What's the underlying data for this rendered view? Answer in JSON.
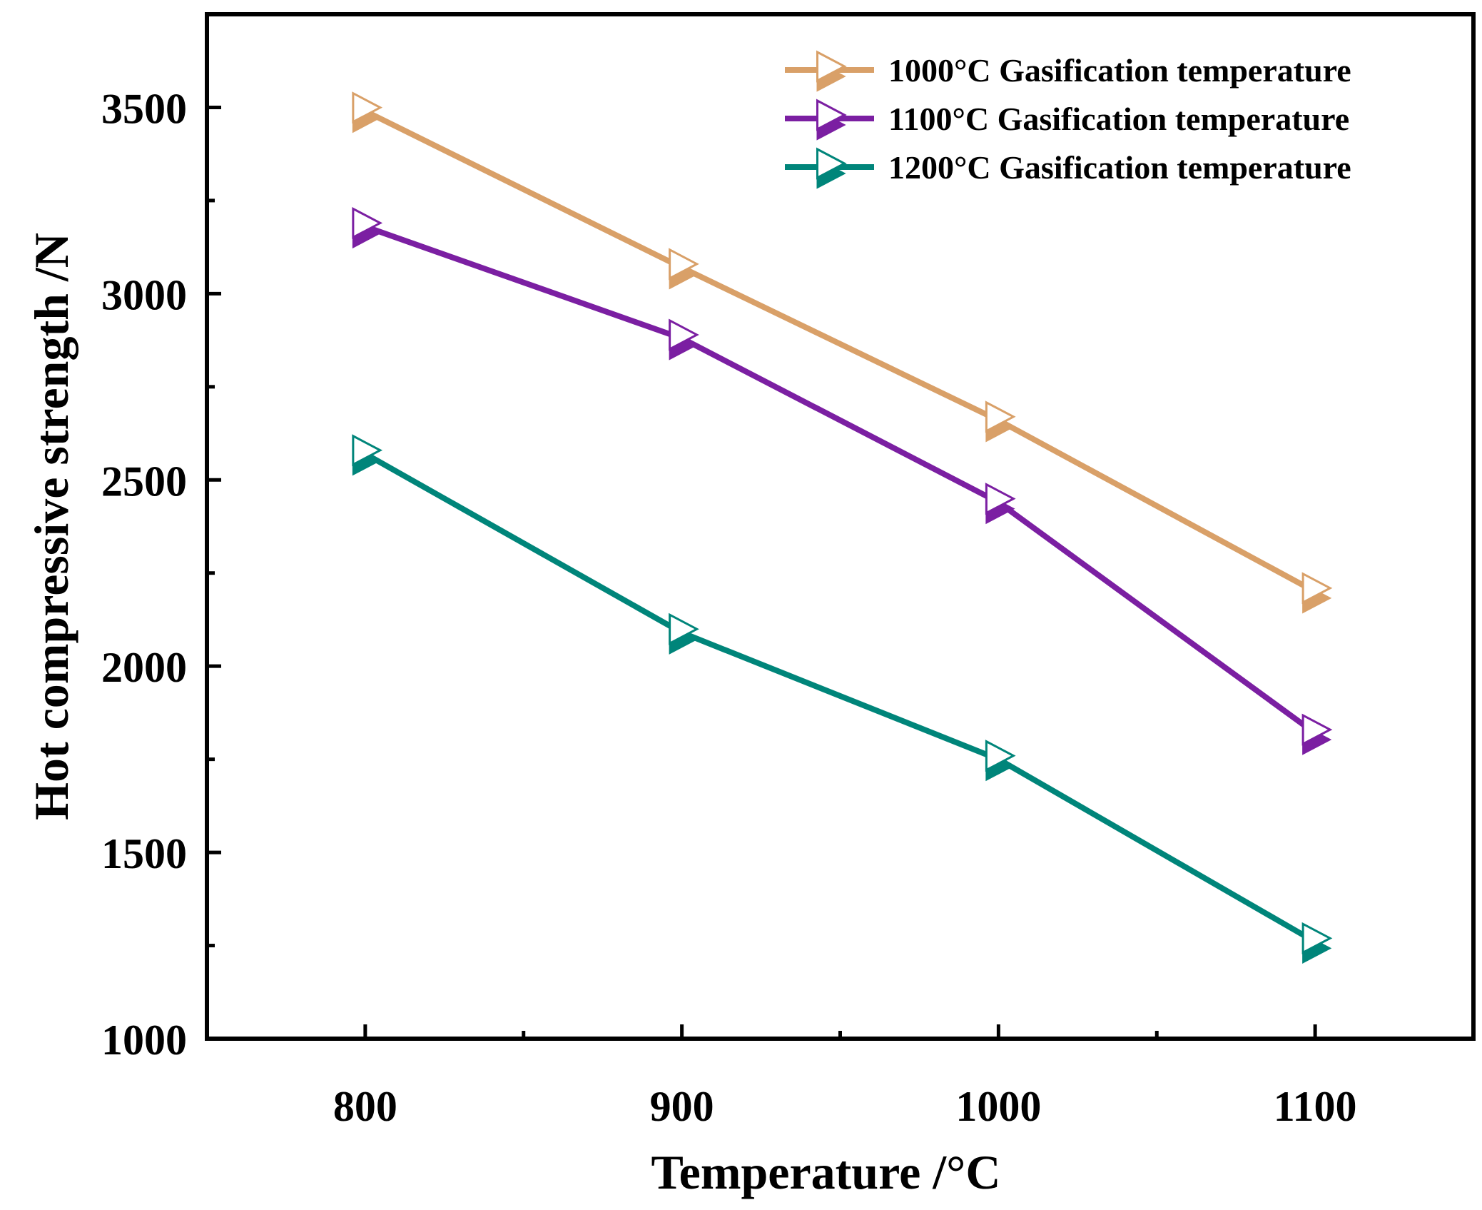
{
  "chart_data": {
    "type": "line",
    "title": "",
    "xlabel": "Temperature /°C",
    "ylabel": "Hot compressive strength /N",
    "x": [
      800,
      900,
      1000,
      1100
    ],
    "xlim": [
      750,
      1150
    ],
    "ylim": [
      1000,
      3750
    ],
    "xticks": [
      800,
      900,
      1000,
      1100
    ],
    "yticks": [
      1000,
      1500,
      2000,
      2500,
      3000,
      3500
    ],
    "xtick_labels": [
      "800",
      "900",
      "1000",
      "1100"
    ],
    "ytick_labels": [
      "1000",
      "1500",
      "2000",
      "2500",
      "3000",
      "3500"
    ],
    "grid": false,
    "legend_position": "top-right",
    "marker": "right-triangle",
    "series": [
      {
        "name": "1000°C Gasification temperature",
        "color": "#D9A068",
        "values": [
          3490,
          3070,
          2660,
          2200
        ]
      },
      {
        "name": "1100°C Gasification temperature",
        "color": "#7B1FA2",
        "values": [
          3180,
          2880,
          2440,
          1820
        ]
      },
      {
        "name": "1200°C Gasification temperature",
        "color": "#00857A",
        "values": [
          2570,
          2090,
          1750,
          1260
        ]
      }
    ]
  }
}
